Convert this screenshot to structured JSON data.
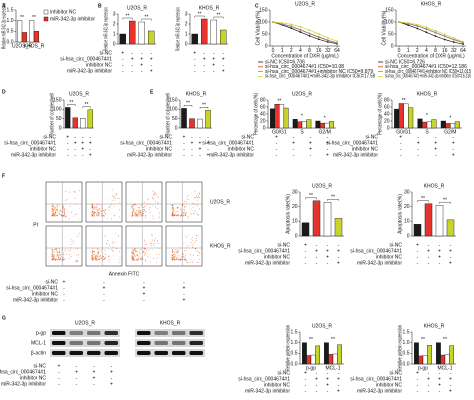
{
  "figure": {
    "panel_labels": [
      "A",
      "B",
      "C",
      "D",
      "E",
      "F",
      "G"
    ],
    "treatments": {
      "rows": [
        "si-NC",
        "si-hsa_circ_0004674#1",
        "inhibitor NC",
        "miR-342-3p inhibitor"
      ],
      "signs": [
        [
          "+",
          "-",
          "-",
          "-"
        ],
        [
          "-",
          "+",
          "+",
          "+"
        ],
        [
          "-",
          "-",
          "+",
          "-"
        ],
        [
          "-",
          "-",
          "-",
          "+"
        ]
      ]
    },
    "flow": {
      "row_labels": [
        "U2OS_R",
        "KHOS_R"
      ],
      "x_label": "Annexin FITC",
      "y_label": "PI"
    },
    "blots": {
      "titles": [
        "U2OS_R",
        "KHOS_R"
      ],
      "rows": [
        "p-gp",
        "MCL-1",
        "β-actin"
      ]
    }
  },
  "chart_data": [
    {
      "type": "bar",
      "y_label": "Relative miR-342-3p expression",
      "categories": [
        "U2OS_R",
        "KHOS_R"
      ],
      "series": [
        {
          "name": "inhibitor NC",
          "color": "#ffffff",
          "values": [
            1.0,
            1.0
          ]
        },
        {
          "name": "miR-342-3p inhibitor",
          "color": "#e8332a",
          "values": [
            0.45,
            0.5
          ]
        }
      ],
      "ylim": [
        0,
        1.5
      ],
      "yticks": [
        {
          "value": 0,
          "label": "0.0"
        },
        {
          "value": 0.5,
          "label": "0.5"
        },
        {
          "value": 1,
          "label": "1.0"
        },
        {
          "value": 1.5,
          "label": "1.5"
        }
      ],
      "annotations": [
        "**",
        "**"
      ]
    },
    {
      "type": "bar",
      "title": "U2OS_R",
      "y_label": "Relative miR-342-3p expression",
      "categories": [
        null,
        null,
        null,
        null
      ],
      "values": [
        1.0,
        2.3,
        2.2,
        1.3
      ],
      "colors": [
        "#1a1a1a",
        "#e8332a",
        "#ffffff",
        "#c8d42a"
      ],
      "ylim": [
        0,
        3
      ],
      "yticks": [
        0,
        1,
        2,
        3
      ],
      "annotations": [
        "**",
        "**"
      ]
    },
    {
      "type": "bar",
      "title": "KHOS_R",
      "y_label": "Relative miR-342-3p expression",
      "categories": [
        null,
        null,
        null,
        null
      ],
      "values": [
        1.0,
        2.5,
        2.4,
        1.4
      ],
      "colors": [
        "#1a1a1a",
        "#e8332a",
        "#ffffff",
        "#c8d42a"
      ],
      "ylim": [
        0,
        3
      ],
      "yticks": [
        0,
        1,
        2,
        3
      ],
      "annotations": [
        "**",
        "**"
      ]
    },
    {
      "type": "line",
      "title": "U2OS_R",
      "x_label": "Concentration of DXR (μg/mL)",
      "y_label": "Cell Viability(%)",
      "categories": [
        "0",
        "1",
        "2",
        "4",
        "8",
        "16",
        "32",
        "64"
      ],
      "series": [
        {
          "name": "si-NC IC50=6.706",
          "color": "#1a1a1a",
          "values": [
            100,
            88,
            74,
            58,
            42,
            28,
            17,
            9
          ]
        },
        {
          "name": "si-hsa_circ_0004674#1 IC50=10.08",
          "color": "#e8332a",
          "values": [
            100,
            92,
            82,
            68,
            52,
            38,
            24,
            13
          ]
        },
        {
          "name": "si-hsa_circ_0004674#1+inhibitor NC IC50=9.879",
          "color": "#8a8a8a",
          "values": [
            100,
            91,
            81,
            67,
            51,
            37,
            23,
            12
          ]
        },
        {
          "name": "si-hsa_circ_0004674#1+miR-342-3p inhibitor IC50=17.58",
          "color": "#c8d42a",
          "values": [
            100,
            96,
            90,
            80,
            66,
            50,
            34,
            20
          ]
        }
      ],
      "ylim": [
        0,
        150
      ],
      "yticks": [
        0,
        50,
        100,
        150
      ]
    },
    {
      "type": "line",
      "title": "KHOS_R",
      "x_label": "Concentration of DXR (μg/mL)",
      "y_label": "Cell Viability(%)",
      "categories": [
        "0",
        "1",
        "2",
        "4",
        "8",
        "16",
        "32",
        "64"
      ],
      "series": [
        {
          "name": "si-NC IC50=6.726",
          "color": "#1a1a1a",
          "values": [
            100,
            87,
            73,
            57,
            41,
            27,
            16,
            8
          ]
        },
        {
          "name": "si-hsa_circ_0004674#1 IC50=12.186",
          "color": "#e8332a",
          "values": [
            100,
            93,
            84,
            71,
            56,
            41,
            27,
            15
          ]
        },
        {
          "name": "si-hsa_circ_0004674#1+inhibitor NC IC50=12.015",
          "color": "#8a8a8a",
          "values": [
            100,
            93,
            83,
            70,
            55,
            40,
            26,
            14
          ]
        },
        {
          "name": "si-hsa_circ_0004674#1+miR-342-3p inhibitor IC50=16.316",
          "color": "#c8d42a",
          "values": [
            100,
            96,
            89,
            78,
            64,
            48,
            32,
            18
          ]
        }
      ],
      "ylim": [
        0,
        150
      ],
      "yticks": [
        0,
        50,
        100,
        150
      ]
    },
    {
      "type": "bar",
      "title": "U2OS_R",
      "y_label": "Number of colonies/well",
      "categories": [
        null,
        null,
        null,
        null
      ],
      "values": [
        110,
        55,
        52,
        98
      ],
      "colors": [
        "#1a1a1a",
        "#e8332a",
        "#ffffff",
        "#c8d42a"
      ],
      "ylim": [
        0,
        150
      ],
      "yticks": [
        0,
        50,
        100,
        150
      ],
      "annotations": [
        "**",
        "**"
      ]
    },
    {
      "type": "bar",
      "title": "KHOS_R",
      "y_label": "Number of colonies/well",
      "categories": [
        null,
        null,
        null,
        null
      ],
      "values": [
        105,
        50,
        48,
        95
      ],
      "colors": [
        "#1a1a1a",
        "#e8332a",
        "#ffffff",
        "#c8d42a"
      ],
      "ylim": [
        0,
        150
      ],
      "yticks": [
        0,
        50,
        100,
        150
      ],
      "annotations": [
        "**",
        "**"
      ]
    },
    {
      "type": "bar",
      "title": "U2OS_R",
      "y_label": "Percentage of cells(%)",
      "categories": [
        "G0/G1",
        "S",
        "G2/M"
      ],
      "series": [
        {
          "color": "#1a1a1a",
          "values": [
            55,
            25,
            20
          ]
        },
        {
          "color": "#e8332a",
          "values": [
            68,
            18,
            14
          ]
        },
        {
          "color": "#ffffff",
          "values": [
            67,
            19,
            14
          ]
        },
        {
          "color": "#c8d42a",
          "values": [
            57,
            24,
            19
          ]
        }
      ],
      "ylim": [
        0,
        80
      ],
      "yticks": [
        0,
        20,
        40,
        60,
        80
      ],
      "annotations": [
        "**",
        "*",
        "*"
      ]
    },
    {
      "type": "bar",
      "title": "KHOS_R",
      "y_label": "Percentage of cells(%)",
      "categories": [
        "G0/G1",
        "S",
        "G2/M"
      ],
      "series": [
        {
          "color": "#1a1a1a",
          "values": [
            54,
            26,
            20
          ]
        },
        {
          "color": "#e8332a",
          "values": [
            70,
            17,
            13
          ]
        },
        {
          "color": "#ffffff",
          "values": [
            69,
            18,
            13
          ]
        },
        {
          "color": "#c8d42a",
          "values": [
            58,
            24,
            18
          ]
        }
      ],
      "ylim": [
        0,
        80
      ],
      "yticks": [
        0,
        20,
        40,
        60,
        80
      ],
      "annotations": [
        "**",
        "*",
        "*"
      ]
    },
    {
      "type": "bar",
      "title": "U2OS_R",
      "y_label": "Apoptosis rate(%)",
      "categories": [
        null,
        null,
        null,
        null
      ],
      "values": [
        9,
        24,
        23,
        12
      ],
      "colors": [
        "#1a1a1a",
        "#e8332a",
        "#ffffff",
        "#c8d42a"
      ],
      "ylim": [
        0,
        30
      ],
      "yticks": [
        0,
        10,
        20,
        30
      ],
      "annotations": [
        "**",
        "**"
      ]
    },
    {
      "type": "bar",
      "title": "KHOS_R",
      "y_label": "Apoptosis rate(%)",
      "categories": [
        null,
        null,
        null,
        null
      ],
      "values": [
        8,
        22,
        21,
        11
      ],
      "colors": [
        "#1a1a1a",
        "#e8332a",
        "#ffffff",
        "#c8d42a"
      ],
      "ylim": [
        0,
        30
      ],
      "yticks": [
        0,
        10,
        20,
        30
      ],
      "annotations": [
        "**",
        "**"
      ]
    },
    {
      "type": "bar",
      "title": "U2OS_R",
      "y_label": "Relative protein expression",
      "categories": [
        "p-gp",
        "MCL-1"
      ],
      "series": [
        {
          "color": "#1a1a1a",
          "values": [
            1.0,
            1.0
          ]
        },
        {
          "color": "#e8332a",
          "values": [
            0.4,
            0.45
          ]
        },
        {
          "color": "#ffffff",
          "values": [
            0.42,
            0.47
          ]
        },
        {
          "color": "#c8d42a",
          "values": [
            0.85,
            0.9
          ]
        }
      ],
      "ylim": [
        0,
        1.5
      ],
      "yticks": [
        {
          "value": 0,
          "label": "0.0"
        },
        {
          "value": 0.5,
          "label": "0.5"
        },
        {
          "value": 1,
          "label": "1.0"
        },
        {
          "value": 1.5,
          "label": "1.5"
        }
      ],
      "annotations": [
        "**",
        "**"
      ]
    },
    {
      "type": "bar",
      "title": "KHOS_R",
      "y_label": "Relative protein expression",
      "categories": [
        "p-gp",
        "MCL-1"
      ],
      "series": [
        {
          "color": "#1a1a1a",
          "values": [
            1.0,
            1.0
          ]
        },
        {
          "color": "#e8332a",
          "values": [
            0.38,
            0.42
          ]
        },
        {
          "color": "#ffffff",
          "values": [
            0.4,
            0.44
          ]
        },
        {
          "color": "#c8d42a",
          "values": [
            0.88,
            0.86
          ]
        }
      ],
      "ylim": [
        0,
        1.5
      ],
      "yticks": [
        {
          "value": 0,
          "label": "0.0"
        },
        {
          "value": 0.5,
          "label": "0.5"
        },
        {
          "value": 1,
          "label": "1.0"
        },
        {
          "value": 1.5,
          "label": "1.5"
        }
      ],
      "annotations": [
        "**",
        "**"
      ]
    }
  ]
}
